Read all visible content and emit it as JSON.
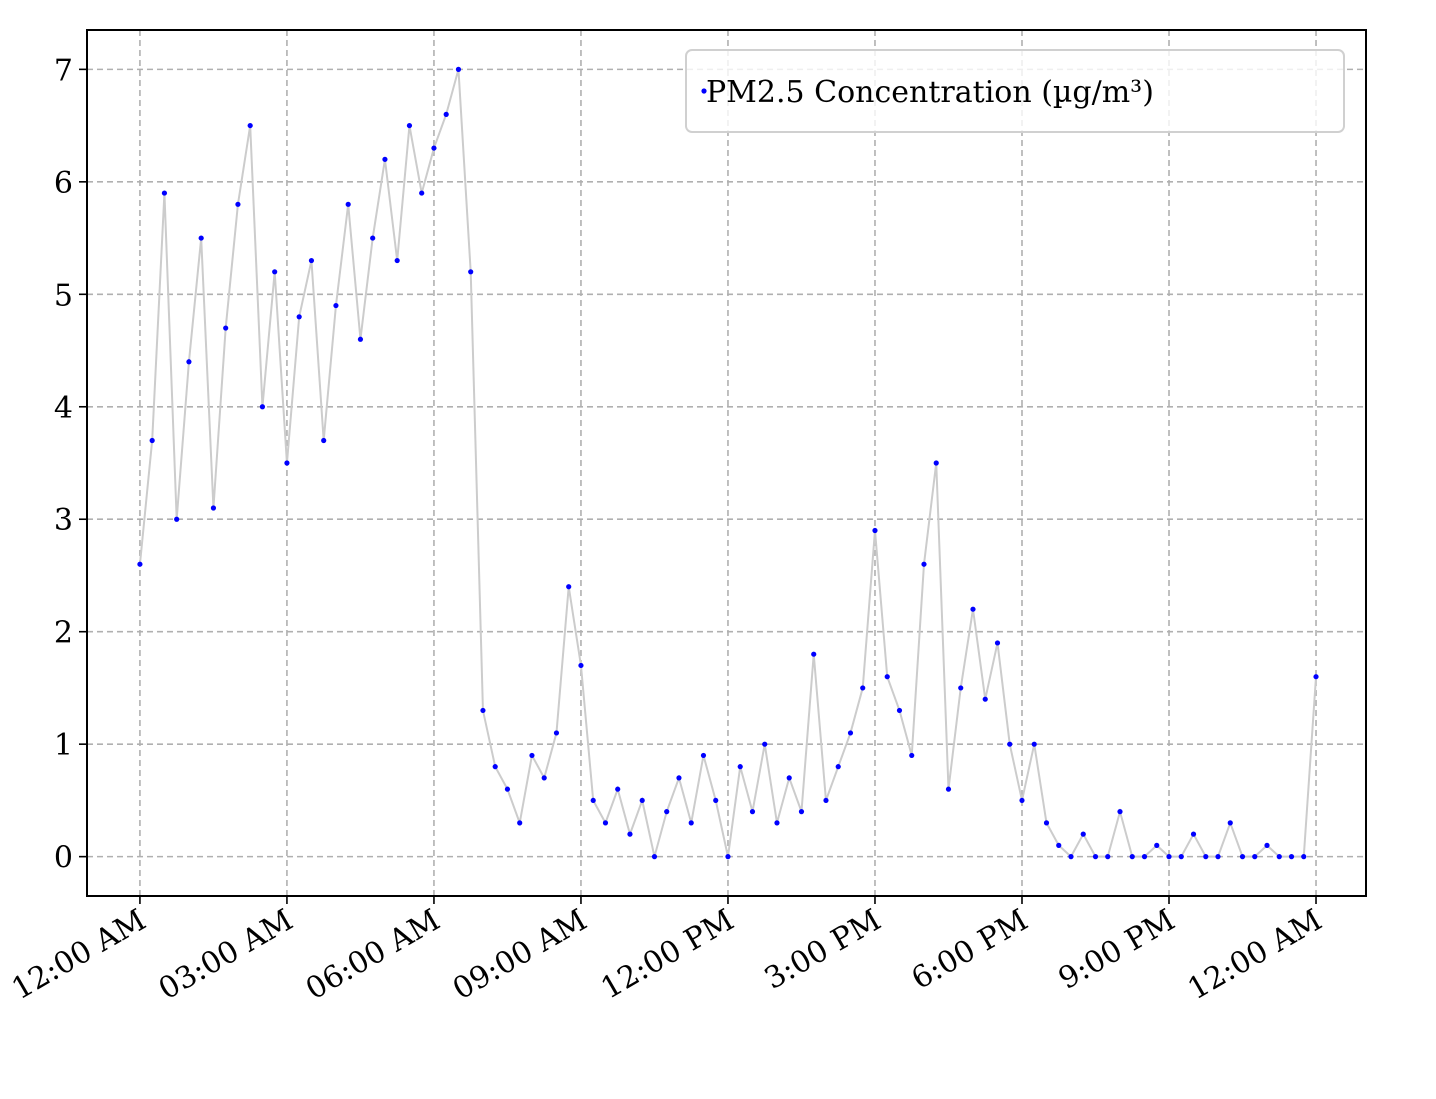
{
  "chart_data": {
    "type": "line",
    "x": [
      0,
      0.25,
      0.5,
      0.75,
      1,
      1.25,
      1.5,
      1.75,
      2,
      2.25,
      2.5,
      2.75,
      3,
      3.25,
      3.5,
      3.75,
      4,
      4.25,
      4.5,
      4.75,
      5,
      5.25,
      5.5,
      5.75,
      6,
      6.25,
      6.5,
      6.75,
      7,
      7.25,
      7.5,
      7.75,
      8,
      8.25,
      8.5,
      8.75,
      9,
      9.25,
      9.5,
      9.75,
      10,
      10.25,
      10.5,
      10.75,
      11,
      11.25,
      11.5,
      11.75,
      12,
      12.25,
      12.5,
      12.75,
      13,
      13.25,
      13.5,
      13.75,
      14,
      14.25,
      14.5,
      14.75,
      15,
      15.25,
      15.5,
      15.75,
      16,
      16.25,
      16.5,
      16.75,
      17,
      17.25,
      17.5,
      17.75,
      18,
      18.25,
      18.5,
      18.75,
      19,
      19.25,
      19.5,
      19.75,
      20,
      20.25,
      20.5,
      20.75,
      21,
      21.25,
      21.5,
      21.75,
      22,
      22.25,
      22.5,
      22.75,
      23,
      23.25,
      23.5,
      23.75,
      24
    ],
    "series": [
      {
        "name": "PM2.5 Concentration (µg/m³)",
        "color": "#0000ff",
        "line_color": "#cccccc",
        "values": [
          2.6,
          3.7,
          5.9,
          3.0,
          4.4,
          5.5,
          3.1,
          4.7,
          5.8,
          6.5,
          4.0,
          5.2,
          3.5,
          4.8,
          5.3,
          3.7,
          4.9,
          5.8,
          4.6,
          5.5,
          6.2,
          5.3,
          6.5,
          5.9,
          6.3,
          6.6,
          7.0,
          5.2,
          1.3,
          0.8,
          0.6,
          0.3,
          0.9,
          0.7,
          1.1,
          2.4,
          1.7,
          0.5,
          0.3,
          0.6,
          0.2,
          0.5,
          0.0,
          0.4,
          0.7,
          0.3,
          0.9,
          0.5,
          0.0,
          0.8,
          0.4,
          1.0,
          0.3,
          0.7,
          0.4,
          1.8,
          0.5,
          0.8,
          1.1,
          1.5,
          2.9,
          1.6,
          1.3,
          0.9,
          2.6,
          3.5,
          0.6,
          1.5,
          2.2,
          1.4,
          1.9,
          1.0,
          0.5,
          1.0,
          0.3,
          0.1,
          0.0,
          0.2,
          0.0,
          0.0,
          0.4,
          0.0,
          0.0,
          0.1,
          0.0,
          0.0,
          0.2,
          0.0,
          0.0,
          0.3,
          0.0,
          0.0,
          0.1,
          0.0,
          0.0,
          0.0,
          1.6
        ]
      }
    ],
    "xlim": [
      -1.08,
      25.02
    ],
    "ylim": [
      -0.35,
      7.35
    ],
    "xticks": [
      {
        "value": 0,
        "label": "12:00 AM"
      },
      {
        "value": 3,
        "label": "03:00 AM"
      },
      {
        "value": 6,
        "label": "06:00 AM"
      },
      {
        "value": 9,
        "label": "09:00 AM"
      },
      {
        "value": 12,
        "label": "12:00 PM"
      },
      {
        "value": 15,
        "label": "3:00 PM"
      },
      {
        "value": 18,
        "label": "6:00 PM"
      },
      {
        "value": 21,
        "label": "9:00 PM"
      },
      {
        "value": 24,
        "label": "12:00 AM"
      }
    ],
    "yticks": [
      0,
      1,
      2,
      3,
      4,
      5,
      6,
      7
    ],
    "grid": true,
    "legend": "upper right"
  }
}
